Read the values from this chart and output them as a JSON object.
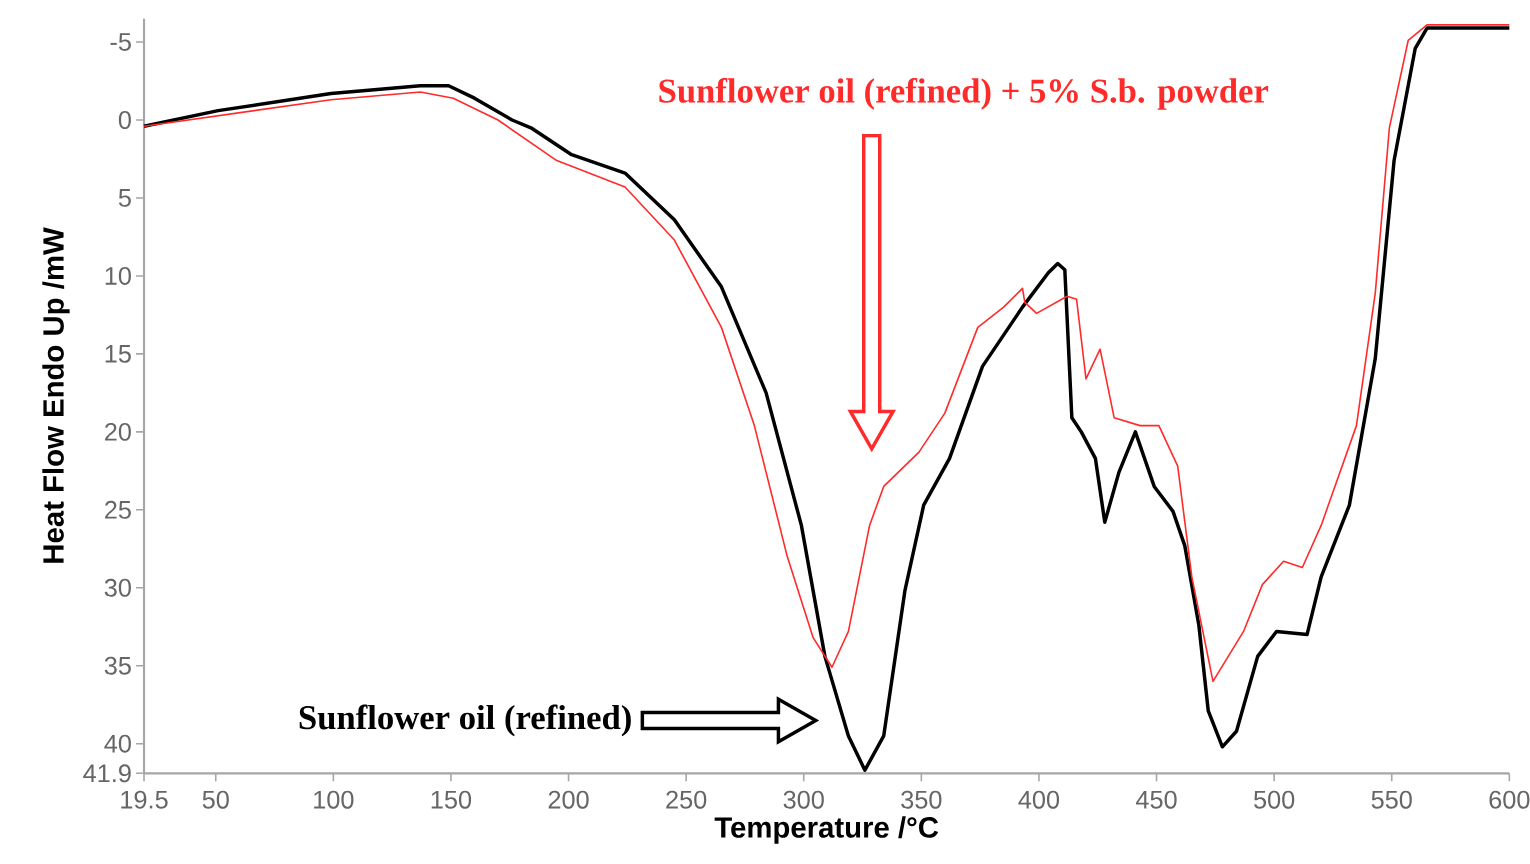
{
  "chart_data": {
    "type": "line",
    "xlabel": "Temperature /°C",
    "ylabel": "Heat Flow Endo Up /mW",
    "xlim": [
      19.5,
      600
    ],
    "ylim": [
      41.9,
      -6.5
    ],
    "xticks": [
      19.5,
      50,
      100,
      150,
      200,
      250,
      300,
      350,
      400,
      450,
      500,
      550,
      600
    ],
    "yticks": [
      -5,
      0,
      5,
      10,
      15,
      20,
      25,
      30,
      35,
      40,
      41.9
    ],
    "series": [
      {
        "color": "#000000",
        "x": [
          19.5,
          51,
          99,
          137,
          149,
          160,
          176,
          184,
          201,
          224,
          245,
          265,
          284,
          299,
          309,
          319,
          326,
          334,
          343,
          351,
          362,
          376,
          393,
          404,
          408,
          411,
          414,
          418,
          424,
          428,
          434,
          441,
          449,
          457,
          462,
          468,
          472,
          478,
          484,
          493,
          501,
          514,
          520,
          532,
          543,
          551,
          560,
          565,
          600
        ],
        "values": [
          0.4,
          -0.6,
          -1.7,
          -2.2,
          -2.2,
          -1.4,
          0,
          0.5,
          2.2,
          3.4,
          6.4,
          10.7,
          17.5,
          26,
          34.4,
          39.5,
          41.7,
          39.5,
          30.2,
          24.7,
          21.7,
          15.8,
          12,
          9.8,
          9.2,
          9.6,
          19.1,
          20,
          21.7,
          25.8,
          22.6,
          20,
          23.5,
          25.1,
          27.3,
          32.4,
          37.9,
          40.2,
          39.2,
          34.4,
          32.8,
          33,
          29.3,
          24.7,
          15.3,
          2.6,
          -4.6,
          -5.9,
          -5.9
        ]
      },
      {
        "color": "#ff2a2a",
        "x": [
          19.5,
          99,
          137,
          151,
          170,
          195,
          224,
          245,
          265,
          279,
          293,
          304,
          312,
          319,
          328,
          334,
          349,
          360,
          374,
          385,
          393,
          394,
          399,
          412,
          416,
          420,
          426,
          432,
          443,
          451,
          459,
          465,
          474,
          487,
          495,
          504,
          512,
          520,
          535,
          543,
          549,
          557,
          565,
          600
        ],
        "values": [
          0.4,
          -1.3,
          -1.8,
          -1.4,
          0,
          2.6,
          4.3,
          7.7,
          13.3,
          19.6,
          28,
          33.2,
          35.1,
          32.8,
          26,
          23.5,
          21.3,
          18.8,
          13.3,
          12,
          10.8,
          11.7,
          12.4,
          11.3,
          11.5,
          16.6,
          14.7,
          19.1,
          19.6,
          19.6,
          22.2,
          29.3,
          36,
          32.8,
          29.8,
          28.3,
          28.7,
          26,
          19.6,
          11.1,
          0.5,
          -5.1,
          -6.1,
          -6.1
        ]
      }
    ],
    "annotations": [
      "Sunflower oil (refined)",
      "Sunflower oil (refined) + 5% S.b.  powder"
    ]
  }
}
